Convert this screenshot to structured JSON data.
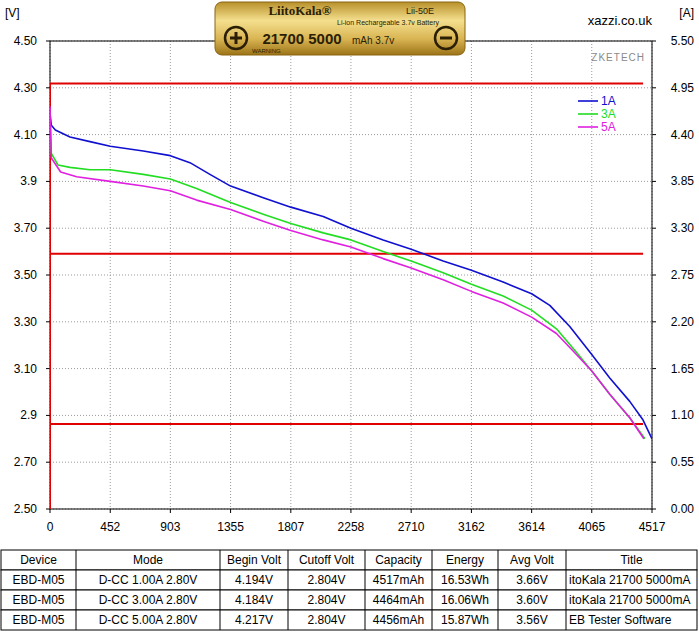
{
  "chart_data": {
    "type": "line",
    "ylabel": "[V]",
    "y2label": "[A]",
    "annotations": [
      "xazzi.co.uk",
      "ZKETECH"
    ],
    "xlim": [
      0,
      4517
    ],
    "xticks": [
      0,
      452,
      903,
      1355,
      1807,
      2258,
      2710,
      3162,
      3614,
      4065,
      4517
    ],
    "ylim": [
      2.5,
      4.5
    ],
    "yticks": [
      {
        "value": 2.5,
        "label": "2.50"
      },
      {
        "value": 2.7,
        "label": "2.70"
      },
      2.9,
      {
        "value": 3.1,
        "label": "3.10"
      },
      {
        "value": 3.3,
        "label": "3.30"
      },
      {
        "value": 3.5,
        "label": "3.50"
      },
      {
        "value": 3.7,
        "label": "3.70"
      },
      3.9,
      {
        "value": 4.1,
        "label": "4.10"
      },
      {
        "value": 4.3,
        "label": "4.30"
      },
      {
        "value": 4.5,
        "label": "4.50"
      }
    ],
    "y2lim": [
      0,
      5.5
    ],
    "y2ticks": [
      {
        "value": 0,
        "label": "0.00"
      },
      0.55,
      {
        "value": 1.1,
        "label": "1.10"
      },
      1.65,
      {
        "value": 2.2,
        "label": "2.20"
      },
      2.75,
      {
        "value": 3.3,
        "label": "3.30"
      },
      3.85,
      {
        "value": 4.4,
        "label": "4.40"
      },
      4.95,
      {
        "value": 5.5,
        "label": "5.50"
      }
    ],
    "grid": true,
    "legend": "top-right",
    "series": [
      {
        "name": "1A",
        "color": "#1010d0",
        "x": [
          0,
          10,
          40,
          150,
          300,
          452,
          700,
          903,
          1050,
          1200,
          1355,
          1600,
          1807,
          2050,
          2258,
          2500,
          2710,
          2950,
          3162,
          3400,
          3614,
          3750,
          3900,
          4065,
          4200,
          4350,
          4450,
          4517
        ],
        "values": [
          4.19,
          4.14,
          4.12,
          4.09,
          4.07,
          4.05,
          4.03,
          4.01,
          3.98,
          3.93,
          3.88,
          3.83,
          3.79,
          3.75,
          3.7,
          3.65,
          3.61,
          3.56,
          3.52,
          3.47,
          3.42,
          3.37,
          3.28,
          3.16,
          3.06,
          2.96,
          2.88,
          2.8
        ]
      },
      {
        "name": "3A",
        "color": "#22dd22",
        "x": [
          0,
          10,
          60,
          150,
          300,
          452,
          700,
          903,
          1100,
          1355,
          1600,
          1807,
          2050,
          2258,
          2500,
          2710,
          2950,
          3162,
          3400,
          3614,
          3800,
          3950,
          4065,
          4200,
          4350,
          4464
        ],
        "values": [
          4.18,
          4.02,
          3.97,
          3.96,
          3.95,
          3.95,
          3.93,
          3.91,
          3.87,
          3.81,
          3.76,
          3.72,
          3.68,
          3.65,
          3.6,
          3.56,
          3.51,
          3.46,
          3.41,
          3.35,
          3.27,
          3.17,
          3.09,
          2.99,
          2.89,
          2.8
        ]
      },
      {
        "name": "5A",
        "color": "#e020e0",
        "x": [
          0,
          10,
          80,
          200,
          452,
          700,
          903,
          1100,
          1355,
          1600,
          1807,
          2050,
          2258,
          2500,
          2710,
          2950,
          3162,
          3400,
          3614,
          3800,
          3950,
          4065,
          4200,
          4350,
          4456
        ],
        "values": [
          4.22,
          4.0,
          3.94,
          3.92,
          3.9,
          3.88,
          3.86,
          3.82,
          3.78,
          3.73,
          3.69,
          3.65,
          3.62,
          3.57,
          3.53,
          3.48,
          3.43,
          3.38,
          3.32,
          3.25,
          3.16,
          3.09,
          2.99,
          2.89,
          2.8
        ]
      },
      {
        "color": "#e00000",
        "axis": "y2",
        "x": [
          0,
          0,
          4450
        ],
        "values": [
          0,
          5.0,
          5.0
        ]
      },
      {
        "color": "#e00000",
        "axis": "y2",
        "x": [
          0,
          0,
          4450
        ],
        "values": [
          0,
          3.0,
          3.0
        ]
      },
      {
        "color": "#e00000",
        "axis": "y2",
        "x": [
          0,
          0,
          4450
        ],
        "values": [
          0,
          1.0,
          1.0
        ]
      }
    ]
  },
  "header": {
    "brand": "LiitoKala®",
    "model": "Lii-50E",
    "subtitle": "Li-ion Rechargeable 3.7v Battery",
    "size": "21700 5000",
    "rating": "mAh 3.7v",
    "warning": "WARNING"
  },
  "table": {
    "columns": [
      "Device",
      "Mode",
      "Begin Volt",
      "Cutoff Volt",
      "Capacity",
      "Energy",
      "Avg Volt",
      "Title"
    ],
    "rows": [
      [
        "EBD-M05",
        "D-CC  1.00A  2.80V",
        "4.194V",
        "2.804V",
        "4517mAh",
        "16.53Wh",
        "3.66V",
        "itoKala 21700 5000mA"
      ],
      [
        "EBD-M05",
        "D-CC  3.00A  2.80V",
        "4.184V",
        "2.804V",
        "4464mAh",
        "16.06Wh",
        "3.60V",
        "itoKala 21700 5000mA"
      ],
      [
        "EBD-M05",
        "D-CC  5.00A  2.80V",
        "4.217V",
        "2.804V",
        "4456mAh",
        "15.87Wh",
        "3.56V",
        "EB Tester Software"
      ]
    ]
  }
}
